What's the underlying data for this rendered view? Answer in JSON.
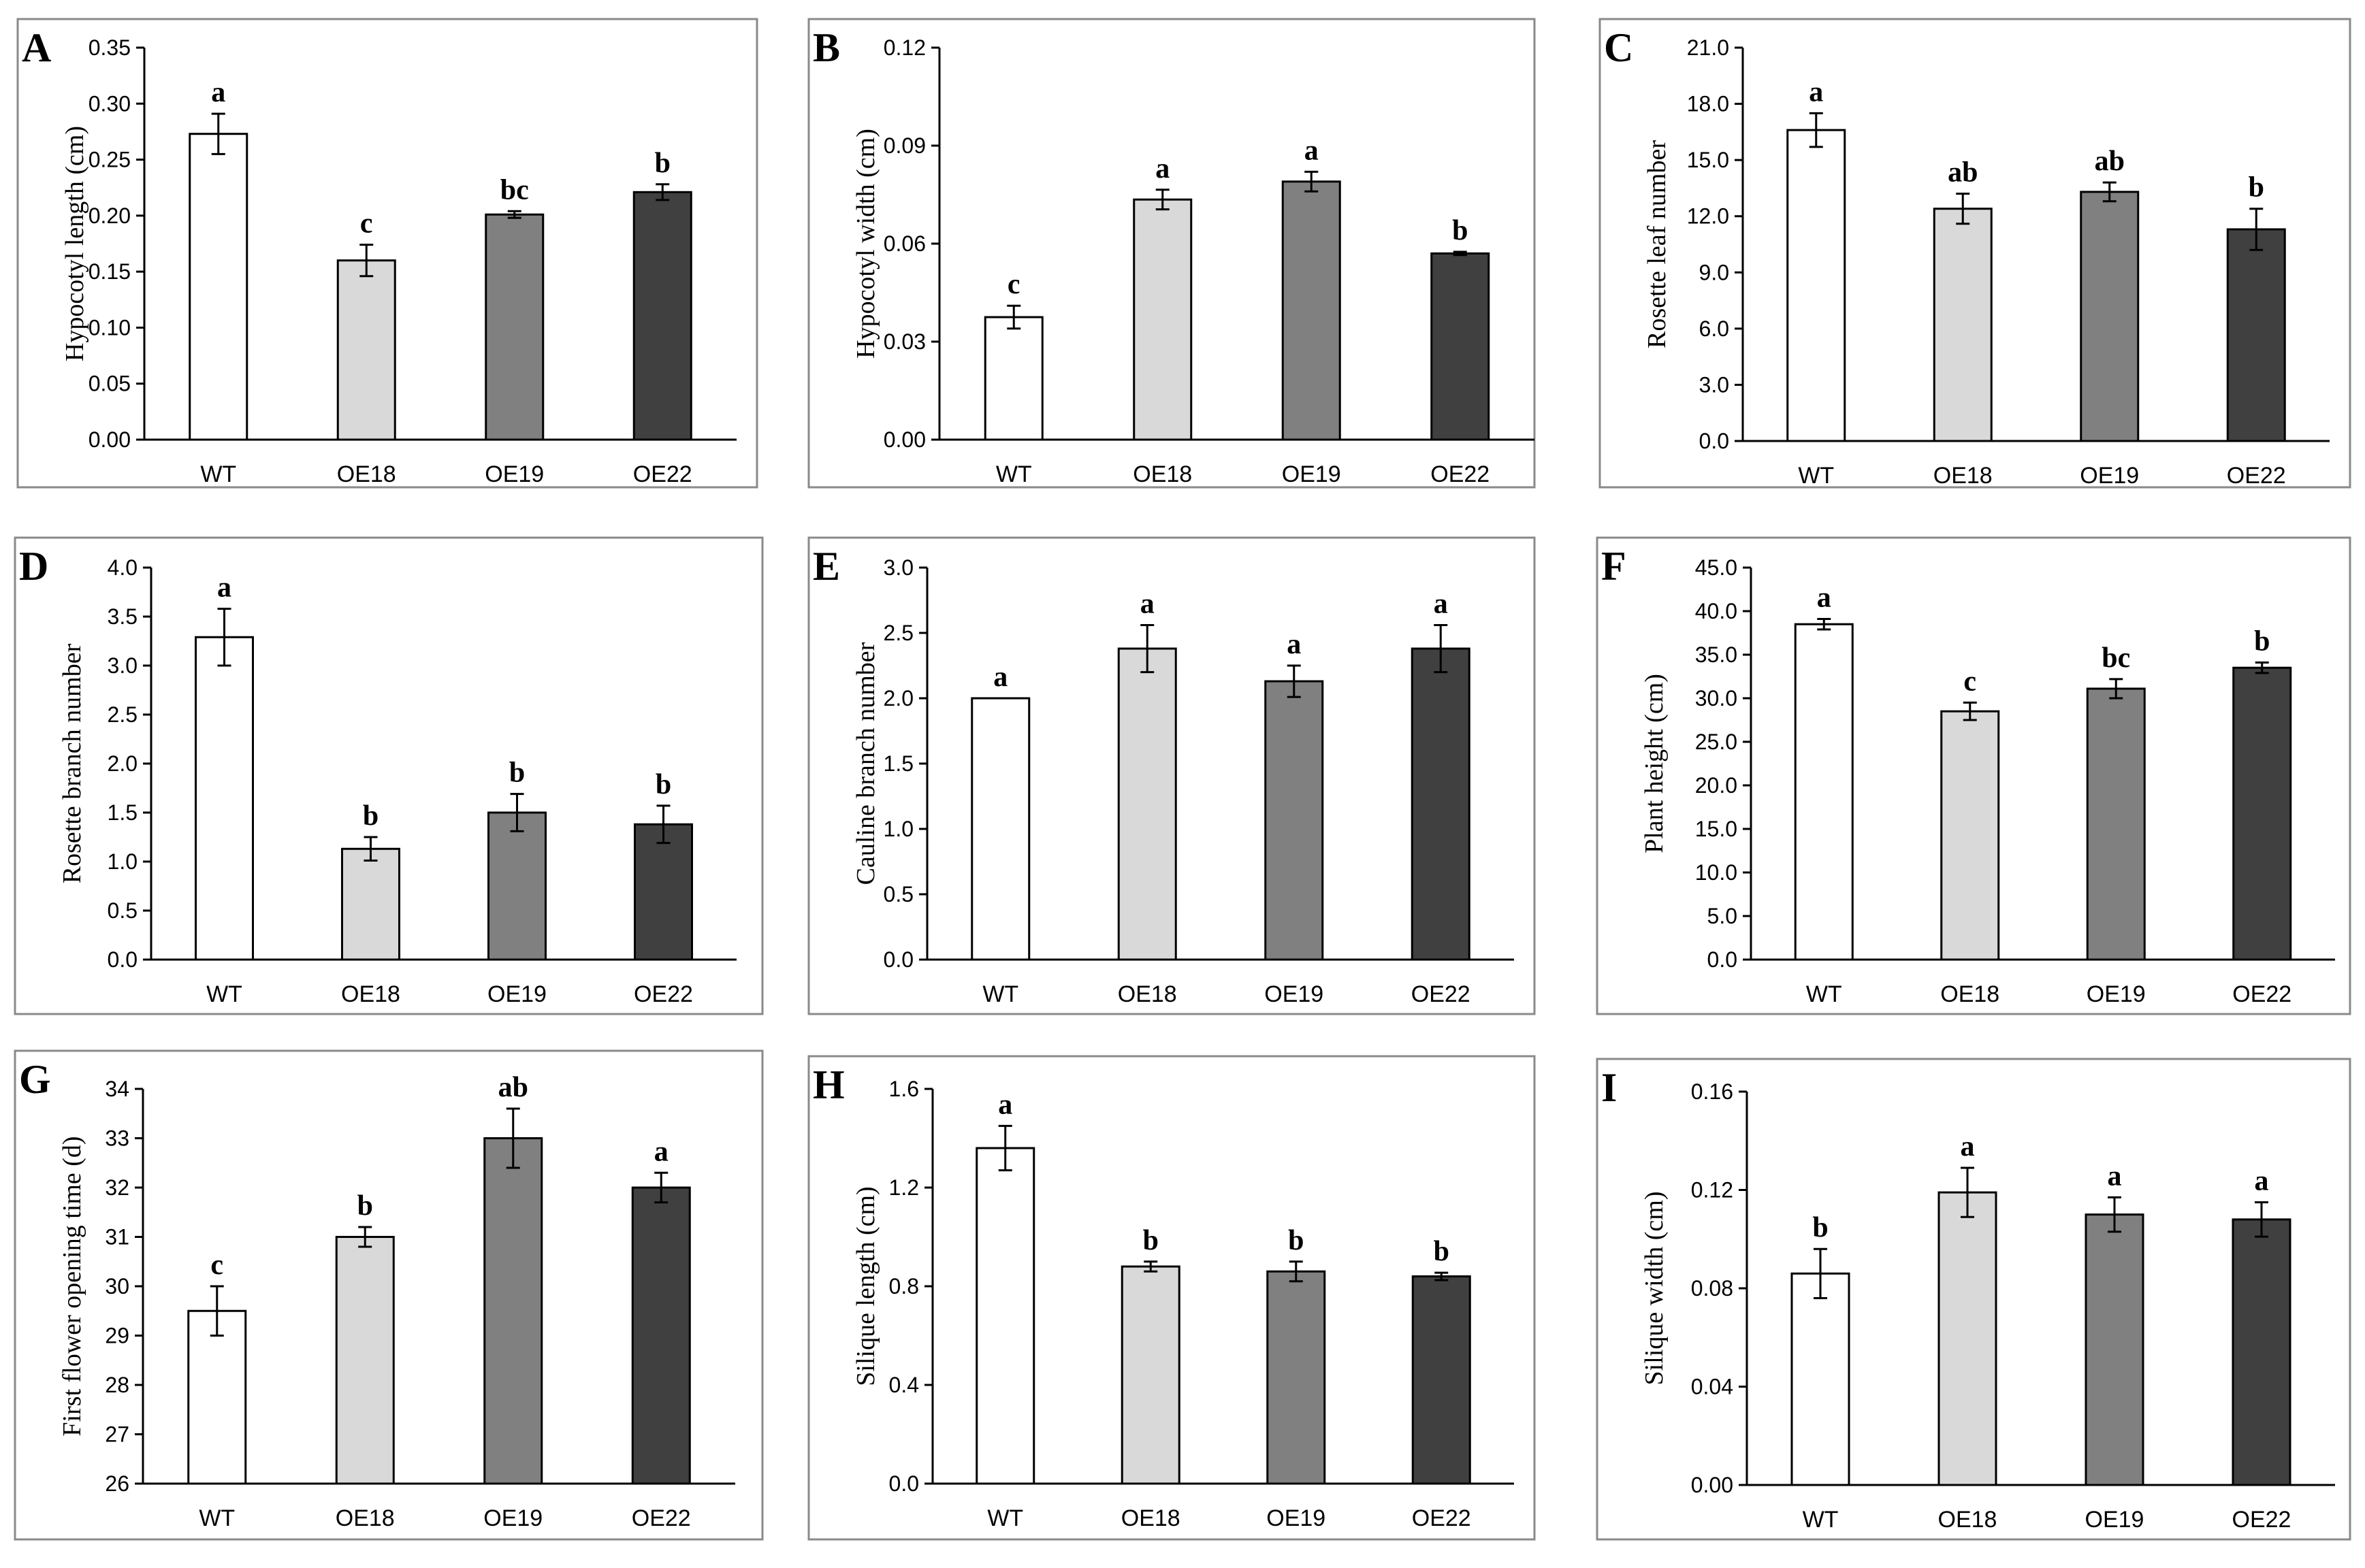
{
  "figure": {
    "bar_colors": [
      "#ffffff",
      "#d9d9d9",
      "#808080",
      "#404040"
    ]
  },
  "chart_data": [
    {
      "panel": "A",
      "type": "bar",
      "categories": [
        "WT",
        "OE18",
        "OE19",
        "OE22"
      ],
      "values": [
        0.273,
        0.16,
        0.201,
        0.221
      ],
      "errors": [
        0.018,
        0.014,
        0.003,
        0.007
      ],
      "letters": [
        "a",
        "c",
        "bc",
        "b"
      ],
      "ylabel": "Hypocotyl length (cm)",
      "xlabel": "",
      "ylim": [
        0,
        0.35
      ],
      "yticks": [
        "0.00",
        "0.05",
        "0.10",
        "0.15",
        "0.20",
        "0.25",
        "0.30",
        "0.35"
      ]
    },
    {
      "panel": "B",
      "type": "bar",
      "categories": [
        "WT",
        "OE18",
        "OE19",
        "OE22"
      ],
      "values": [
        0.0375,
        0.0735,
        0.079,
        0.057
      ],
      "errors": [
        0.0035,
        0.003,
        0.003,
        0.0005
      ],
      "letters": [
        "c",
        "a",
        "a",
        "b"
      ],
      "ylabel": "Hypocotyl width (cm)",
      "xlabel": "",
      "ylim": [
        0,
        0.12
      ],
      "yticks": [
        "0.00",
        "0.03",
        "0.06",
        "0.09",
        "0.12"
      ]
    },
    {
      "panel": "C",
      "type": "bar",
      "categories": [
        "WT",
        "OE18",
        "OE19",
        "OE22"
      ],
      "values": [
        16.6,
        12.4,
        13.3,
        11.3
      ],
      "errors": [
        0.9,
        0.8,
        0.5,
        1.1
      ],
      "letters": [
        "a",
        "ab",
        "ab",
        "b"
      ],
      "ylabel": "Rosette leaf number",
      "xlabel": "",
      "ylim": [
        0,
        21
      ],
      "yticks": [
        "0.0",
        "3.0",
        "6.0",
        "9.0",
        "12.0",
        "15.0",
        "18.0",
        "21.0"
      ]
    },
    {
      "panel": "D",
      "type": "bar",
      "categories": [
        "WT",
        "OE18",
        "OE19",
        "OE22"
      ],
      "values": [
        3.29,
        1.13,
        1.5,
        1.38
      ],
      "errors": [
        0.29,
        0.12,
        0.19,
        0.19
      ],
      "letters": [
        "a",
        "b",
        "b",
        "b"
      ],
      "ylabel": "Rosette branch number",
      "xlabel": "",
      "ylim": [
        0,
        4
      ],
      "yticks": [
        "0.0",
        "0.5",
        "1.0",
        "1.5",
        "2.0",
        "2.5",
        "3.0",
        "3.5",
        "4.0"
      ]
    },
    {
      "panel": "E",
      "type": "bar",
      "categories": [
        "WT",
        "OE18",
        "OE19",
        "OE22"
      ],
      "values": [
        2.0,
        2.38,
        2.13,
        2.38
      ],
      "errors": [
        0.0,
        0.18,
        0.12,
        0.18
      ],
      "letters": [
        "a",
        "a",
        "a",
        "a"
      ],
      "ylabel": "Cauline branch number",
      "xlabel": "",
      "ylim": [
        0,
        3
      ],
      "yticks": [
        "0.0",
        "0.5",
        "1.0",
        "1.5",
        "2.0",
        "2.5",
        "3.0"
      ]
    },
    {
      "panel": "F",
      "type": "bar",
      "categories": [
        "WT",
        "OE18",
        "OE19",
        "OE22"
      ],
      "values": [
        38.5,
        28.5,
        31.1,
        33.5
      ],
      "errors": [
        0.6,
        1.0,
        1.1,
        0.6
      ],
      "letters": [
        "a",
        "c",
        "bc",
        "b"
      ],
      "ylabel": "Plant height (cm)",
      "xlabel": "",
      "ylim": [
        0,
        45
      ],
      "yticks": [
        "0.0",
        "5.0",
        "10.0",
        "15.0",
        "20.0",
        "25.0",
        "30.0",
        "35.0",
        "40.0",
        "45.0"
      ]
    },
    {
      "panel": "G",
      "type": "bar",
      "categories": [
        "WT",
        "OE18",
        "OE19",
        "OE22"
      ],
      "values": [
        29.5,
        31.0,
        33.0,
        32.0
      ],
      "errors": [
        0.5,
        0.2,
        0.6,
        0.3
      ],
      "letters": [
        "c",
        "b",
        "ab",
        "a"
      ],
      "ylabel": "First flower opening time (d)",
      "xlabel": "",
      "ylim": [
        26,
        34
      ],
      "yticks": [
        "26",
        "27",
        "28",
        "29",
        "30",
        "31",
        "32",
        "33",
        "34"
      ]
    },
    {
      "panel": "H",
      "type": "bar",
      "categories": [
        "WT",
        "OE18",
        "OE19",
        "OE22"
      ],
      "values": [
        1.36,
        0.88,
        0.86,
        0.84
      ],
      "errors": [
        0.09,
        0.02,
        0.04,
        0.015
      ],
      "letters": [
        "a",
        "b",
        "b",
        "b"
      ],
      "ylabel": "Silique length (cm)",
      "xlabel": "",
      "ylim": [
        0,
        1.6
      ],
      "yticks": [
        "0.0",
        "0.4",
        "0.8",
        "1.2",
        "1.6"
      ]
    },
    {
      "panel": "I",
      "type": "bar",
      "categories": [
        "WT",
        "OE18",
        "OE19",
        "OE22"
      ],
      "values": [
        0.086,
        0.119,
        0.11,
        0.108
      ],
      "errors": [
        0.01,
        0.01,
        0.007,
        0.007
      ],
      "letters": [
        "b",
        "a",
        "a",
        "a"
      ],
      "ylabel": "Silique  width (cm)",
      "xlabel": "",
      "ylim": [
        0,
        0.16
      ],
      "yticks": [
        "0.00",
        "0.04",
        "0.08",
        "0.12",
        "0.16"
      ]
    }
  ]
}
